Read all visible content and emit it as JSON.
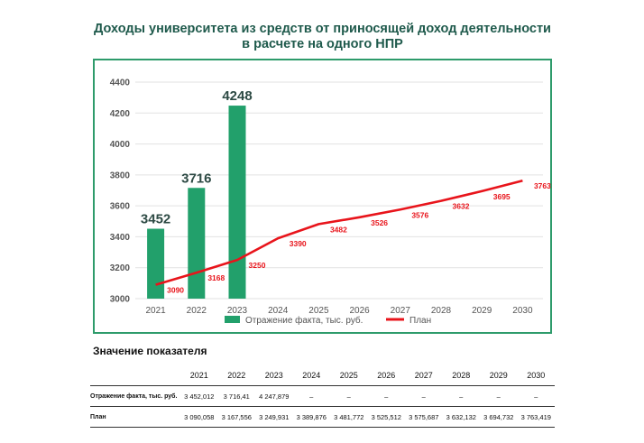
{
  "title_line1": "Доходы университета из средств от приносящей доход деятельности",
  "title_line2": "в расчете на одного НПР",
  "chart_data": {
    "type": "bar",
    "categories": [
      "2021",
      "2022",
      "2023",
      "2024",
      "2025",
      "2026",
      "2027",
      "2028",
      "2029",
      "2030"
    ],
    "series": [
      {
        "name": "Отражение факта, тыс. руб.",
        "kind": "bar",
        "color": "#22a06b",
        "values": [
          3452,
          3716,
          4248,
          null,
          null,
          null,
          null,
          null,
          null,
          null
        ],
        "labels": [
          "3452",
          "3716",
          "4248"
        ]
      },
      {
        "name": "План",
        "kind": "line",
        "color": "#e8141b",
        "values": [
          3090,
          3168,
          3250,
          3390,
          3482,
          3526,
          3576,
          3632,
          3695,
          3763
        ],
        "labels": [
          "3090",
          "3168",
          "3250",
          "3390",
          "3482",
          "3526",
          "3576",
          "3632",
          "3695",
          "3763"
        ]
      }
    ],
    "yticks": [
      "3000",
      "3200",
      "3400",
      "3600",
      "3800",
      "4000",
      "4200",
      "4400"
    ],
    "ylim": [
      3000,
      4400
    ],
    "legend_position": "bottom"
  },
  "table": {
    "section_title": "Значение показателя",
    "years": [
      "2021",
      "2022",
      "2023",
      "2024",
      "2025",
      "2026",
      "2027",
      "2028",
      "2029",
      "2030"
    ],
    "rows": [
      {
        "label": "Отражение факта, тыс. руб.",
        "values": [
          "3 452,012",
          "3 716,41",
          "4 247,879",
          "–",
          "–",
          "–",
          "–",
          "–",
          "–",
          "–"
        ]
      },
      {
        "label": "План",
        "values": [
          "3 090,058",
          "3 167,556",
          "3 249,931",
          "3 389,876",
          "3 481,772",
          "3 525,512",
          "3 575,687",
          "3 632,132",
          "3 694,732",
          "3 763,419"
        ]
      }
    ]
  }
}
